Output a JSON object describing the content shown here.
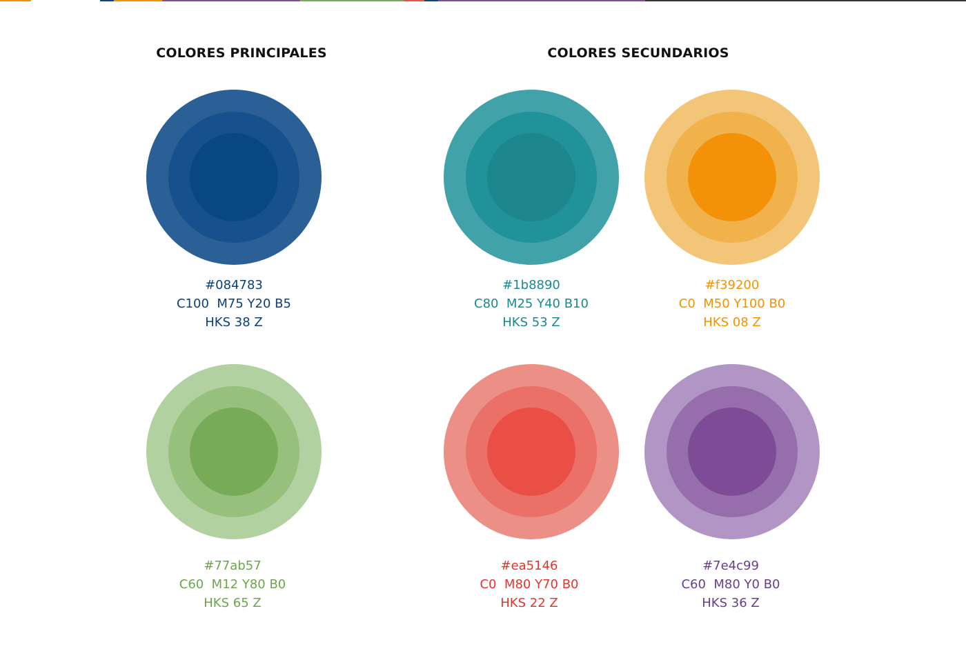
{
  "headings": {
    "primary": "COLORES PRINCIPALES",
    "secondary": "COLORES SECUNDARIOS"
  },
  "top_strip_colors": [
    "#f39200",
    "#ffffff",
    "#084783",
    "#f39200",
    "#7e4c99",
    "#77ab57",
    "#ea5146",
    "#084783",
    "#7e4c99",
    "#333333"
  ],
  "swatches": {
    "blue": {
      "hex": "#084783",
      "cmyk": "C100  M75 Y20 B5",
      "hks": "HKS 38 Z",
      "rings": [
        "#2a6095",
        "#16508d",
        "#084783"
      ],
      "text_color": "#0b3f78"
    },
    "teal": {
      "hex": "#1b8890",
      "cmyk": "C80  M25 Y40 B10",
      "hks": "HKS 53 Z",
      "rings": [
        "#41a3a9",
        "#21929a",
        "#1d868c"
      ],
      "text_color": "#1b8890"
    },
    "orange": {
      "hex": "#f39200",
      "cmyk": "C0  M50 Y100 B0",
      "hks": "HKS 08 Z",
      "rings": [
        "#f3c579",
        "#f1b24c",
        "#f39209"
      ],
      "text_color": "#f39200"
    },
    "green": {
      "hex": "#77ab57",
      "cmyk": "C60  M12 Y80 B0",
      "hks": "HKS 65 Z",
      "rings": [
        "#b1d1a0",
        "#97c07d",
        "#77ab57"
      ],
      "text_color": "#6aa64a"
    },
    "red": {
      "hex": "#ea5146",
      "cmyk": "C0  M80 Y70 B0",
      "hks": "HKS 22 Z",
      "rings": [
        "#ec8f86",
        "#eb7068",
        "#e94f45"
      ],
      "text_color": "#e8332a"
    },
    "purple": {
      "hex": "#7e4c99",
      "cmyk": "C60  M80 Y0 B0",
      "hks": "HKS 36 Z",
      "rings": [
        "#b195c4",
        "#966eab",
        "#7e4b97"
      ],
      "text_color": "#6a3d8c"
    }
  }
}
